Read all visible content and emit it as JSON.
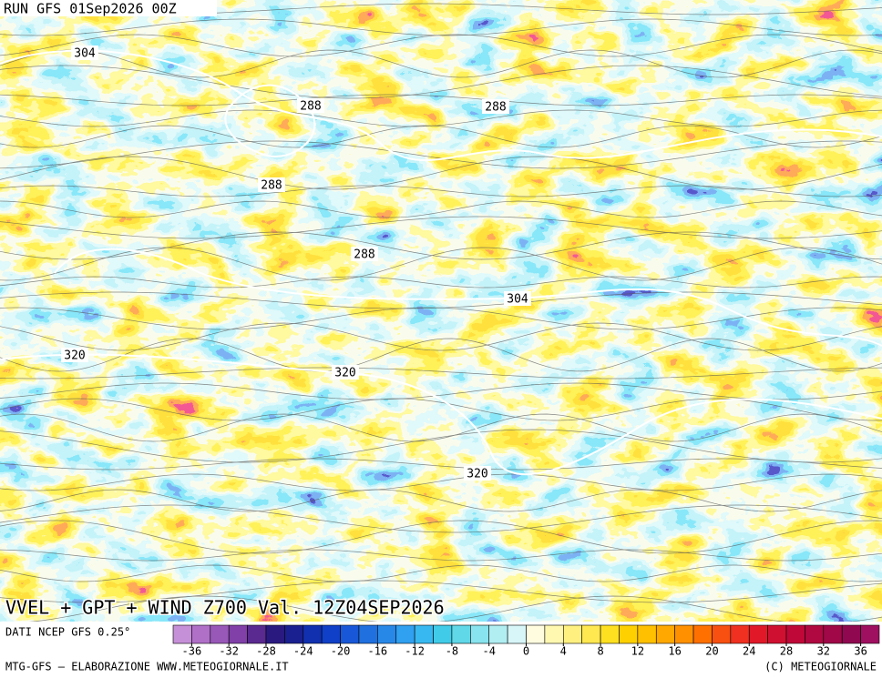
{
  "run_label": "RUN GFS 01Sep2026 00Z",
  "contour_labels": [
    304,
    288,
    288,
    288,
    288,
    304,
    320,
    320,
    320
  ],
  "title": "VVEL + GPT + WIND Z700 Val. 12Z04SEP2026",
  "source": "DATI NCEP GFS 0.25°",
  "colorbar": {
    "range": [
      -38,
      38
    ],
    "ticks": [
      -36,
      -32,
      -28,
      -24,
      -20,
      -16,
      -12,
      -8,
      -4,
      0,
      4,
      8,
      12,
      16,
      20,
      24,
      28,
      32,
      36
    ],
    "colors": [
      "#c690d8",
      "#b070c8",
      "#9858b8",
      "#8040a8",
      "#5a2a90",
      "#2a1a80",
      "#1a2090",
      "#1030b0",
      "#1040c8",
      "#1858d8",
      "#2070e0",
      "#2888e8",
      "#30a0f0",
      "#38b8f0",
      "#40cce8",
      "#60d8e8",
      "#88e4ee",
      "#b0eef2",
      "#d8f6f8",
      "#fffce0",
      "#fff8b0",
      "#fff080",
      "#ffe850",
      "#ffe020",
      "#ffd000",
      "#ffc000",
      "#ffa800",
      "#ff9000",
      "#ff7000",
      "#f85010",
      "#f03020",
      "#e01828",
      "#d01030",
      "#c00838",
      "#b00840",
      "#a00848",
      "#900850",
      "#a01060"
    ]
  },
  "footer_left": "MTG-GFS — ELABORAZIONE WWW.METEOGIORNALE.IT",
  "footer_right": "(C) METEOGIORNALE"
}
